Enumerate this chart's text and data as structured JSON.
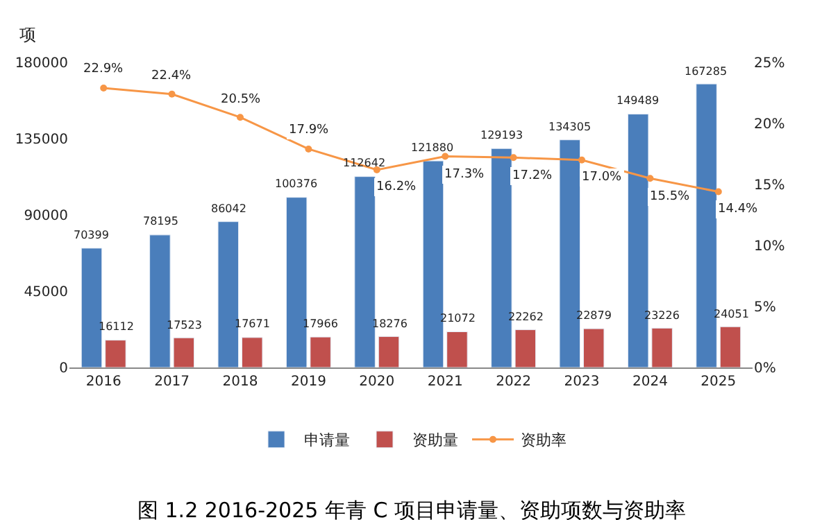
{
  "chart_data": {
    "type": "bar",
    "title": "图 1.2 2016-2025 年青 C 项目申请量、资助项数与资助率",
    "ylabel": "项",
    "categories": [
      "2016",
      "2017",
      "2018",
      "2019",
      "2020",
      "2021",
      "2022",
      "2023",
      "2024",
      "2025"
    ],
    "series": [
      {
        "name": "申请量",
        "color": "#4a7ebb",
        "values": [
          70399,
          78195,
          86042,
          100376,
          112642,
          121880,
          129193,
          134305,
          149489,
          167285
        ],
        "value_labels": [
          "70399",
          "78195",
          "86042",
          "100376",
          "112642",
          "121880",
          "129193",
          "134305",
          "149489",
          "167285"
        ]
      },
      {
        "name": "资助量",
        "color": "#c0504d",
        "values": [
          16112,
          17523,
          17671,
          17966,
          18276,
          21072,
          22262,
          22879,
          23226,
          24051
        ],
        "value_labels": [
          "16112",
          "17523",
          "17671",
          "17966",
          "18276",
          "21072",
          "22262",
          "22879",
          "23226",
          "24051"
        ]
      },
      {
        "name": "资助率",
        "type": "line",
        "axis": "y2",
        "color": "#f79646",
        "values": [
          22.9,
          22.4,
          20.5,
          17.9,
          16.2,
          17.3,
          17.2,
          17.0,
          15.5,
          14.4
        ],
        "value_labels": [
          "22.9%",
          "22.4%",
          "20.5%",
          "17.9%",
          "16.2%",
          "17.3%",
          "17.2%",
          "17.0%",
          "15.5%",
          "14.4%"
        ]
      }
    ],
    "ylim": [
      0,
      180000
    ],
    "yticks": [
      0,
      45000,
      90000,
      135000,
      180000
    ],
    "y2lim": [
      0,
      25
    ],
    "y2ticks": [
      {
        "value": 0,
        "label": "0%"
      },
      {
        "value": 5,
        "label": "5%"
      },
      {
        "value": 10,
        "label": "10%"
      },
      {
        "value": 15,
        "label": "15%"
      },
      {
        "value": 20,
        "label": "20%"
      },
      {
        "value": 25,
        "label": "25%"
      }
    ],
    "legend": "bottom",
    "marker": "circle",
    "line_style": "solid"
  }
}
